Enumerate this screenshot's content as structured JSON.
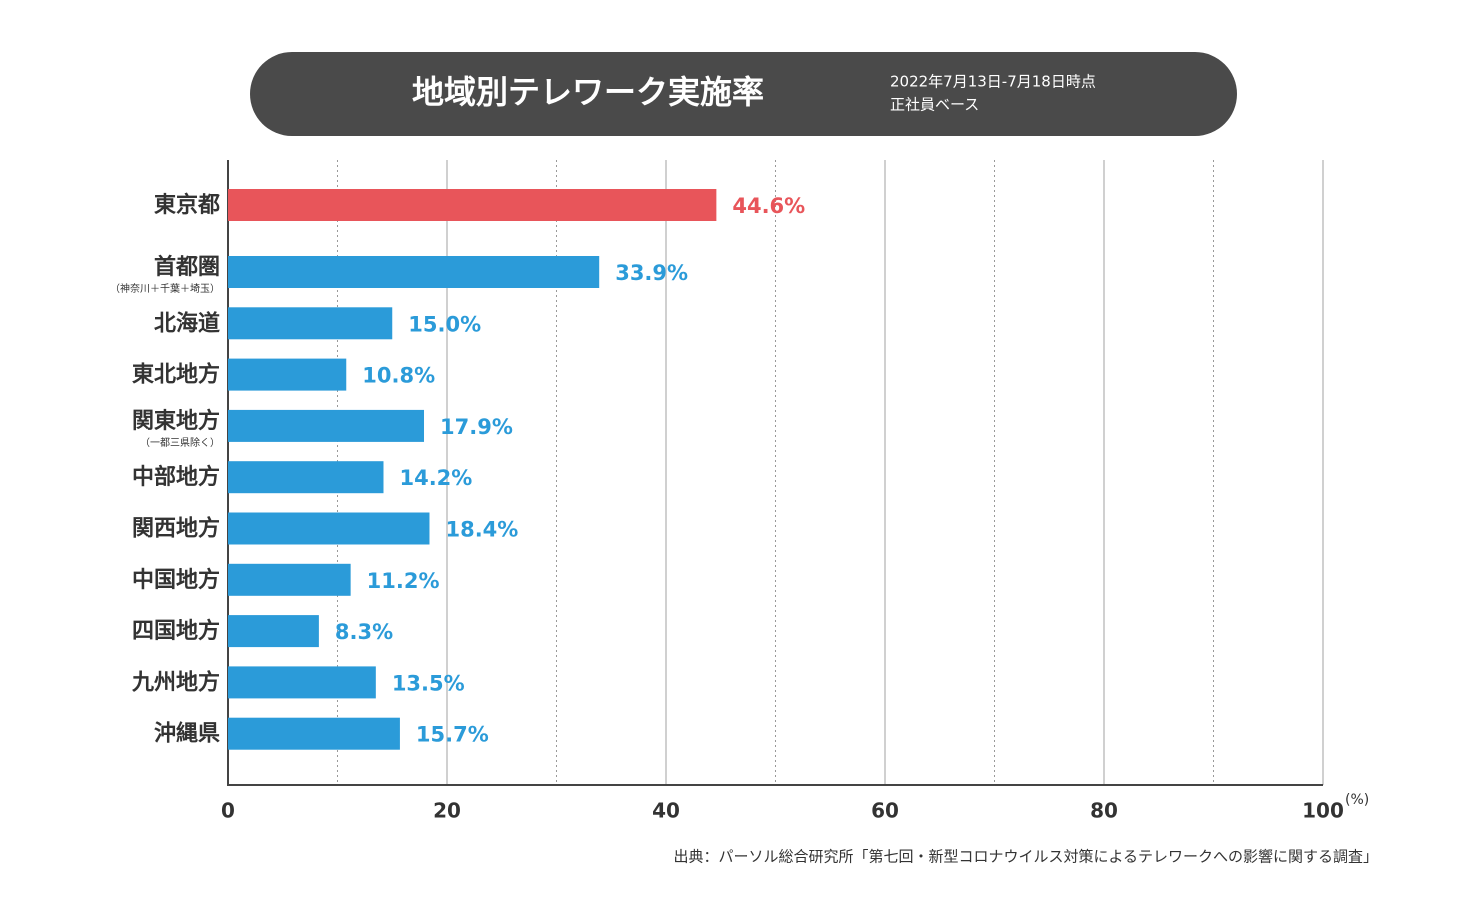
{
  "chart_data": {
    "type": "bar",
    "orientation": "horizontal",
    "title": "地域別テレワーク実施率",
    "subtitle": [
      "2022年7月13日-7月18日時点",
      "正社員ベース"
    ],
    "categories": [
      "東京都",
      "首都圏",
      "北海道",
      "東北地方",
      "関東地方",
      "中部地方",
      "関西地方",
      "中国地方",
      "四国地方",
      "九州地方",
      "沖縄県"
    ],
    "category_notes": [
      null,
      "（神奈川＋千葉＋埼玉）",
      null,
      null,
      "（一都三県除く）",
      null,
      null,
      null,
      null,
      null,
      null
    ],
    "values": [
      44.6,
      33.9,
      15.0,
      10.8,
      17.9,
      14.2,
      18.4,
      11.2,
      8.3,
      13.5,
      15.7
    ],
    "value_labels": [
      "44.6%",
      "33.9%",
      "15.0%",
      "10.8%",
      "17.9%",
      "14.2%",
      "18.4%",
      "11.2%",
      "8.3%",
      "13.5%",
      "15.7%"
    ],
    "colors": [
      "#e8555a",
      "#2b9bd9",
      "#2b9bd9",
      "#2b9bd9",
      "#2b9bd9",
      "#2b9bd9",
      "#2b9bd9",
      "#2b9bd9",
      "#2b9bd9",
      "#2b9bd9",
      "#2b9bd9"
    ],
    "xlim": [
      0,
      100
    ],
    "xticks": [
      0,
      20,
      40,
      60,
      80,
      100
    ],
    "minor_xticks": [
      10,
      30,
      50,
      70,
      90
    ],
    "x_unit": "(%)",
    "grid": true,
    "source": "出典：パーソル総合研究所「第七回・新型コロナウイルス対策によるテレワークへの影響に関する調査」"
  }
}
